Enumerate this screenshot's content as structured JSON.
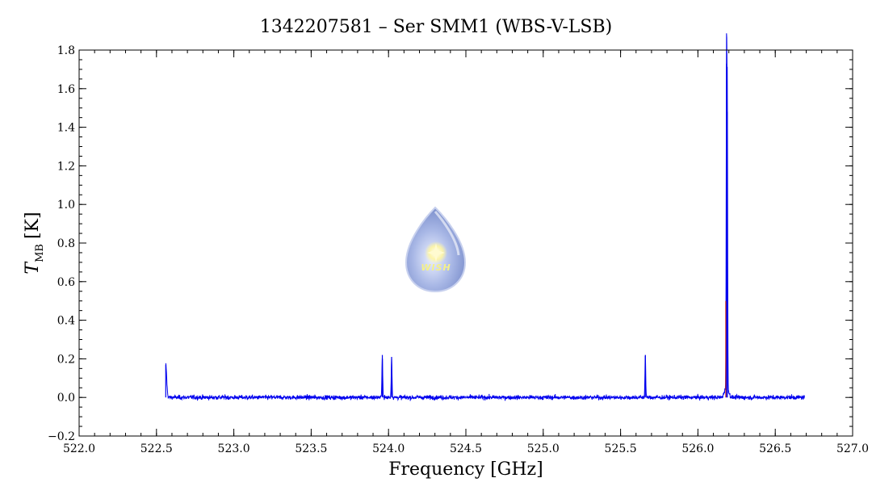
{
  "chart_data": {
    "type": "line",
    "title": "1342207581 – Ser SMM1 (WBS-V-LSB)",
    "xlabel": "Frequency [GHz]",
    "ylabel_main": "T",
    "ylabel_sub": "MB",
    "ylabel_unit": "[K]",
    "xlim": [
      522.0,
      527.0
    ],
    "ylim": [
      -0.2,
      1.8
    ],
    "xticks": [
      "522.0",
      "522.5",
      "523.0",
      "523.5",
      "524.0",
      "524.5",
      "525.0",
      "525.5",
      "526.0",
      "526.5",
      "527.0"
    ],
    "yticks": [
      "−0.2",
      "0.0",
      "0.2",
      "0.4",
      "0.6",
      "0.8",
      "1.0",
      "1.2",
      "1.4",
      "1.6",
      "1.8"
    ],
    "grid": false,
    "colors": {
      "spectrum": "#0000ee",
      "overlay": "#cc2200"
    },
    "series": [
      {
        "baseline_range": [
          522.56,
          526.69
        ],
        "noise_rms": 0.01,
        "peaks": [
          {
            "x": 522.56,
            "y": 0.17
          },
          {
            "x": 523.96,
            "y": 0.22
          },
          {
            "x": 524.02,
            "y": 0.21
          },
          {
            "x": 525.66,
            "y": 0.22
          },
          {
            "x": 526.185,
            "y": 1.73
          },
          {
            "x": 526.19,
            "y": 1.48
          }
        ]
      }
    ]
  },
  "watermark": {
    "text": "WISH"
  }
}
